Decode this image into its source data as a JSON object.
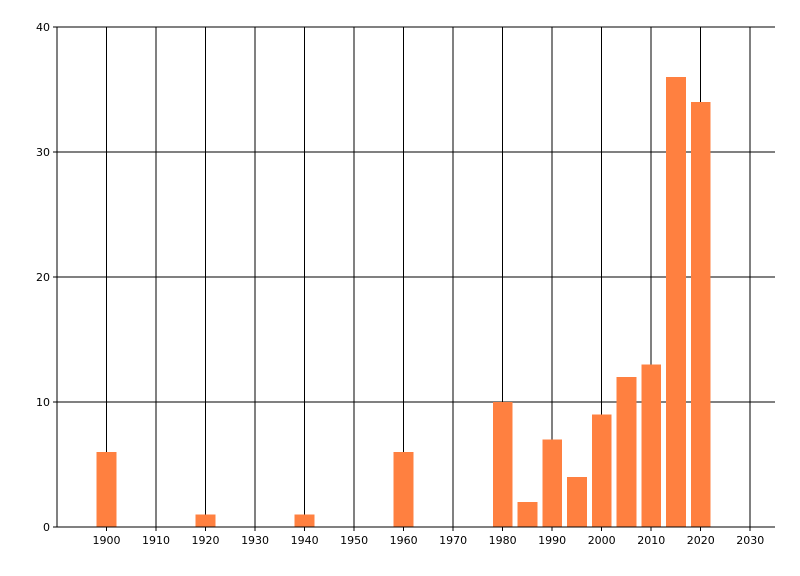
{
  "chart_data": {
    "type": "bar",
    "title": "",
    "xlabel": "",
    "ylabel": "",
    "x": [
      1900,
      1920,
      1940,
      1960,
      1980,
      1985,
      1990,
      1995,
      2000,
      2005,
      2010,
      2015,
      2020
    ],
    "values": [
      6,
      1,
      1,
      6,
      10,
      2,
      7,
      4,
      9,
      12,
      13,
      36,
      34
    ],
    "bar_width_years": 4,
    "xlim": [
      1890,
      2035
    ],
    "ylim": [
      0,
      40
    ],
    "xticks": [
      "1900",
      "1910",
      "1920",
      "1930",
      "1940",
      "1950",
      "1960",
      "1970",
      "1980",
      "1990",
      "2000",
      "2010",
      "2020",
      "2030"
    ],
    "yticks": [
      "0",
      "10",
      "20",
      "30",
      "40"
    ],
    "grid": true,
    "legend": "none",
    "colors": {
      "bar": "#FF8040",
      "grid": "#000000"
    }
  }
}
